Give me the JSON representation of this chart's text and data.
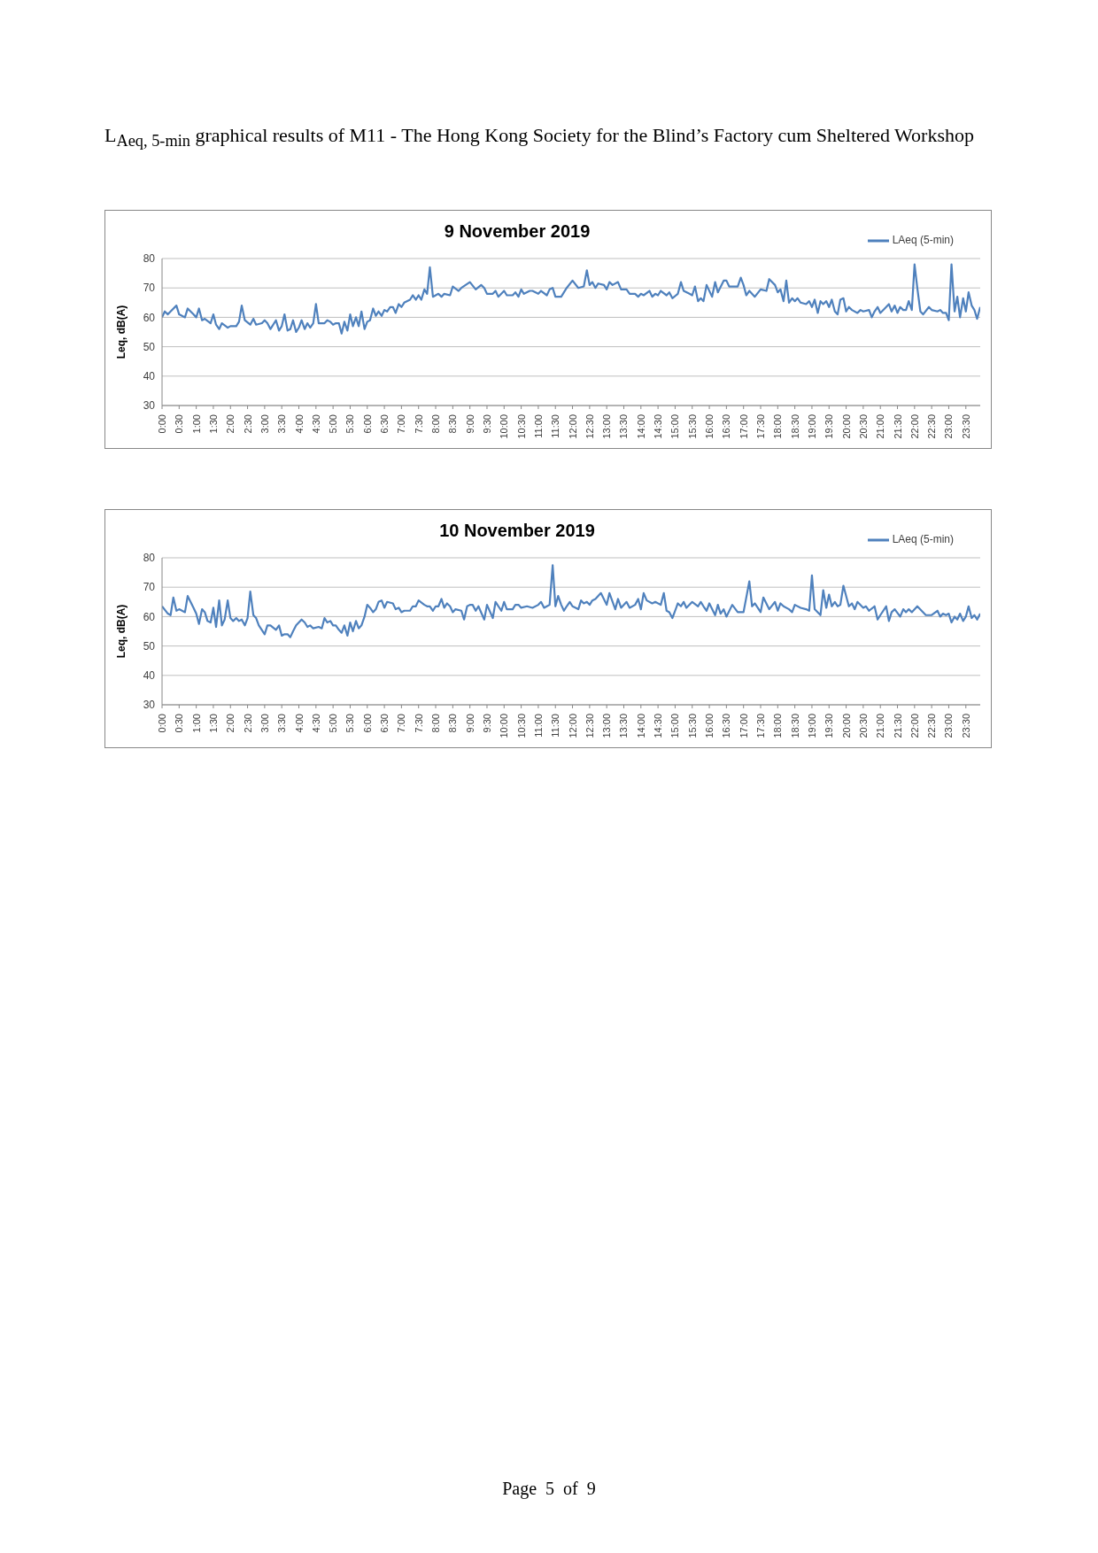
{
  "chart_data": [
    {
      "type": "line",
      "title": "9 November 2019",
      "ylabel": "Leq, dB(A)",
      "annotations": [
        "L$_{Aeq, 5-min}$ graphical results of M11 - The Hong Kong Society for the Blind’s Factory cum Sheltered Workshop"
      ],
      "x": [
        0,
        0.08,
        0.17,
        0.25,
        0.42,
        0.5,
        0.67,
        0.75,
        0.92,
        1.0,
        1.08,
        1.17,
        1.25,
        1.42,
        1.5,
        1.58,
        1.67,
        1.75,
        1.92,
        2.0,
        2.17,
        2.25,
        2.33,
        2.42,
        2.58,
        2.67,
        2.75,
        2.92,
        3.0,
        3.08,
        3.17,
        3.33,
        3.42,
        3.5,
        3.58,
        3.67,
        3.75,
        3.83,
        3.92,
        4.0,
        4.08,
        4.17,
        4.25,
        4.33,
        4.42,
        4.5,
        4.58,
        4.75,
        4.83,
        4.92,
        5.0,
        5.08,
        5.17,
        5.25,
        5.33,
        5.42,
        5.5,
        5.58,
        5.67,
        5.75,
        5.83,
        5.92,
        6.0,
        6.08,
        6.17,
        6.25,
        6.33,
        6.42,
        6.5,
        6.58,
        6.67,
        6.75,
        6.83,
        6.92,
        7.0,
        7.08,
        7.25,
        7.33,
        7.42,
        7.5,
        7.58,
        7.67,
        7.75,
        7.83,
        7.92,
        8.08,
        8.17,
        8.25,
        8.42,
        8.5,
        8.67,
        8.75,
        9.0,
        9.17,
        9.33,
        9.42,
        9.5,
        9.67,
        9.75,
        9.83,
        10.0,
        10.08,
        10.25,
        10.33,
        10.42,
        10.5,
        10.58,
        10.75,
        10.83,
        11.0,
        11.08,
        11.25,
        11.33,
        11.42,
        11.5,
        11.67,
        11.83,
        12.0,
        12.17,
        12.33,
        12.42,
        12.5,
        12.58,
        12.67,
        12.75,
        12.92,
        13.0,
        13.08,
        13.17,
        13.33,
        13.42,
        13.58,
        13.67,
        13.83,
        13.92,
        14.0,
        14.08,
        14.25,
        14.33,
        14.42,
        14.5,
        14.58,
        14.75,
        14.83,
        14.92,
        15.08,
        15.17,
        15.25,
        15.42,
        15.5,
        15.58,
        15.67,
        15.75,
        15.83,
        15.92,
        16.08,
        16.17,
        16.25,
        16.42,
        16.5,
        16.58,
        16.83,
        16.92,
        17.0,
        17.08,
        17.17,
        17.33,
        17.5,
        17.67,
        17.75,
        17.92,
        18.0,
        18.08,
        18.17,
        18.25,
        18.33,
        18.42,
        18.5,
        18.58,
        18.67,
        18.83,
        18.92,
        19.0,
        19.08,
        19.17,
        19.25,
        19.33,
        19.42,
        19.5,
        19.58,
        19.67,
        19.75,
        19.83,
        19.92,
        20.0,
        20.08,
        20.17,
        20.33,
        20.42,
        20.5,
        20.67,
        20.75,
        20.83,
        20.92,
        21.0,
        21.17,
        21.25,
        21.33,
        21.42,
        21.5,
        21.58,
        21.67,
        21.75,
        21.83,
        21.92,
        22.0,
        22.08,
        22.17,
        22.25,
        22.42,
        22.5,
        22.67,
        22.75,
        22.83,
        22.92,
        23.0,
        23.08,
        23.17,
        23.25,
        23.33,
        23.42,
        23.5,
        23.58,
        23.67,
        23.75,
        23.83,
        23.92
      ],
      "series": [
        {
          "name": "LAeq (5-min)",
          "color": "#4f81bd",
          "values": [
            60,
            62,
            61,
            62,
            64,
            61,
            60,
            63,
            61,
            60,
            63,
            59,
            59.5,
            58,
            61,
            57.5,
            56,
            58,
            56.5,
            57,
            57,
            58.5,
            64,
            59,
            57.5,
            59.5,
            57.5,
            58,
            59,
            58,
            56,
            59,
            55.5,
            57,
            61,
            55.5,
            56,
            59,
            55,
            56.5,
            59,
            56,
            58,
            56.5,
            58,
            64.5,
            58,
            58,
            59,
            58.5,
            57.5,
            58,
            58,
            54.5,
            58.5,
            55.5,
            61,
            57,
            60,
            57,
            62,
            56,
            58.5,
            59,
            63,
            60.5,
            62,
            60.5,
            62.5,
            62,
            63.5,
            63.5,
            61.5,
            64.5,
            63.5,
            65,
            66,
            67.5,
            66,
            67.5,
            66,
            69.5,
            68,
            77,
            67,
            68,
            67,
            68,
            67.5,
            70.5,
            69,
            70,
            72,
            69.5,
            71,
            70,
            68,
            68,
            69,
            67,
            69,
            67.5,
            67.5,
            68.5,
            67,
            69.5,
            68,
            69,
            69,
            68,
            69,
            67.5,
            69.5,
            70,
            67,
            67,
            70,
            72.5,
            70,
            70.5,
            76,
            71,
            72,
            70,
            71.5,
            71,
            69.5,
            72,
            71,
            72,
            69.5,
            69.5,
            68,
            68,
            67,
            68,
            67.5,
            69,
            67,
            68,
            67.5,
            69,
            67.5,
            68.5,
            66.5,
            68,
            72,
            69,
            68,
            67.5,
            70.5,
            65.5,
            66.5,
            65.5,
            71,
            67,
            72,
            68.5,
            72.5,
            72.5,
            70.5,
            70.5,
            73.5,
            71,
            67.5,
            69,
            67,
            69.5,
            69,
            73,
            71,
            68.5,
            69.5,
            65.5,
            72.5,
            65,
            66.5,
            65.5,
            66.5,
            65,
            64.5,
            65.5,
            63.5,
            66,
            61.5,
            65.5,
            64.5,
            65.5,
            63.5,
            66,
            62,
            61,
            66,
            66.5,
            62,
            63.5,
            62.5,
            61.5,
            62.5,
            62,
            62.5,
            60,
            62,
            63.5,
            61.5,
            63.5,
            64.5,
            62,
            64,
            61.5,
            63.5,
            62.5,
            62.5,
            65.5,
            62.5,
            78,
            70,
            62,
            61,
            63.5,
            62.5,
            62,
            62.5,
            61.5,
            61.5,
            59,
            78,
            62,
            67,
            60,
            66.5,
            62,
            68.5,
            64,
            62.5,
            59.5,
            63.5
          ]
        }
      ],
      "xlim": [
        0,
        23.92
      ],
      "ylim": [
        30,
        80
      ],
      "yticks": [
        30,
        40,
        50,
        60,
        70,
        80
      ],
      "xticks": [
        {
          "value": 0,
          "label": "0:00"
        },
        {
          "value": 0.5,
          "label": "0:30"
        },
        {
          "value": 1,
          "label": "1:00"
        },
        {
          "value": 1.5,
          "label": "1:30"
        },
        {
          "value": 2,
          "label": "2:00"
        },
        {
          "value": 2.5,
          "label": "2:30"
        },
        {
          "value": 3,
          "label": "3:00"
        },
        {
          "value": 3.5,
          "label": "3:30"
        },
        {
          "value": 4,
          "label": "4:00"
        },
        {
          "value": 4.5,
          "label": "4:30"
        },
        {
          "value": 5,
          "label": "5:00"
        },
        {
          "value": 5.5,
          "label": "5:30"
        },
        {
          "value": 6,
          "label": "6:00"
        },
        {
          "value": 6.5,
          "label": "6:30"
        },
        {
          "value": 7,
          "label": "7:00"
        },
        {
          "value": 7.5,
          "label": "7:30"
        },
        {
          "value": 8,
          "label": "8:00"
        },
        {
          "value": 8.5,
          "label": "8:30"
        },
        {
          "value": 9,
          "label": "9:00"
        },
        {
          "value": 9.5,
          "label": "9:30"
        },
        {
          "value": 10,
          "label": "10:00"
        },
        {
          "value": 10.5,
          "label": "10:30"
        },
        {
          "value": 11,
          "label": "11:00"
        },
        {
          "value": 11.5,
          "label": "11:30"
        },
        {
          "value": 12,
          "label": "12:00"
        },
        {
          "value": 12.5,
          "label": "12:30"
        },
        {
          "value": 13,
          "label": "13:00"
        },
        {
          "value": 13.5,
          "label": "13:30"
        },
        {
          "value": 14,
          "label": "14:00"
        },
        {
          "value": 14.5,
          "label": "14:30"
        },
        {
          "value": 15,
          "label": "15:00"
        },
        {
          "value": 15.5,
          "label": "15:30"
        },
        {
          "value": 16,
          "label": "16:00"
        },
        {
          "value": 16.5,
          "label": "16:30"
        },
        {
          "value": 17,
          "label": "17:00"
        },
        {
          "value": 17.5,
          "label": "17:30"
        },
        {
          "value": 18,
          "label": "18:00"
        },
        {
          "value": 18.5,
          "label": "18:30"
        },
        {
          "value": 19,
          "label": "19:00"
        },
        {
          "value": 19.5,
          "label": "19:30"
        },
        {
          "value": 20,
          "label": "20:00"
        },
        {
          "value": 20.5,
          "label": "20:30"
        },
        {
          "value": 21,
          "label": "21:00"
        },
        {
          "value": 21.5,
          "label": "21:30"
        },
        {
          "value": 22,
          "label": "22:00"
        },
        {
          "value": 22.5,
          "label": "22:30"
        },
        {
          "value": 23,
          "label": "23:00"
        },
        {
          "value": 23.5,
          "label": "23:30"
        }
      ],
      "grid": "y",
      "legend": "top right",
      "marker": "none",
      "line_style": "solid"
    },
    {
      "type": "line",
      "title": "10 November 2019",
      "ylabel": "Leq, dB(A)",
      "annotations": [
        "Page  5  of  9"
      ],
      "x": [
        0,
        0.17,
        0.25,
        0.33,
        0.42,
        0.5,
        0.67,
        0.75,
        0.92,
        1.0,
        1.08,
        1.17,
        1.25,
        1.33,
        1.42,
        1.5,
        1.58,
        1.67,
        1.75,
        1.83,
        1.92,
        2.0,
        2.08,
        2.17,
        2.25,
        2.33,
        2.42,
        2.5,
        2.58,
        2.67,
        2.75,
        2.83,
        3.0,
        3.08,
        3.17,
        3.33,
        3.42,
        3.5,
        3.58,
        3.67,
        3.75,
        3.83,
        3.92,
        4.08,
        4.17,
        4.25,
        4.33,
        4.42,
        4.58,
        4.67,
        4.75,
        4.83,
        4.92,
        5.0,
        5.08,
        5.17,
        5.25,
        5.33,
        5.42,
        5.5,
        5.58,
        5.67,
        5.75,
        5.83,
        5.92,
        6.0,
        6.08,
        6.17,
        6.25,
        6.33,
        6.42,
        6.5,
        6.58,
        6.75,
        6.83,
        6.92,
        7.0,
        7.08,
        7.25,
        7.33,
        7.42,
        7.5,
        7.67,
        7.75,
        7.83,
        7.92,
        8.0,
        8.08,
        8.17,
        8.25,
        8.33,
        8.42,
        8.5,
        8.58,
        8.75,
        8.83,
        8.92,
        9.0,
        9.08,
        9.17,
        9.25,
        9.42,
        9.5,
        9.67,
        9.75,
        9.92,
        10.0,
        10.08,
        10.17,
        10.25,
        10.33,
        10.42,
        10.5,
        10.67,
        10.83,
        11.0,
        11.08,
        11.17,
        11.25,
        11.33,
        11.42,
        11.5,
        11.58,
        11.67,
        11.75,
        11.83,
        11.92,
        12.0,
        12.17,
        12.25,
        12.33,
        12.42,
        12.5,
        12.58,
        12.67,
        12.83,
        13.0,
        13.08,
        13.25,
        13.33,
        13.42,
        13.58,
        13.67,
        13.83,
        13.92,
        14.0,
        14.08,
        14.17,
        14.33,
        14.42,
        14.58,
        14.67,
        14.75,
        14.83,
        14.92,
        15.08,
        15.17,
        15.25,
        15.33,
        15.5,
        15.67,
        15.75,
        15.83,
        15.92,
        16.0,
        16.17,
        16.25,
        16.33,
        16.42,
        16.5,
        16.67,
        16.83,
        17.0,
        17.17,
        17.25,
        17.33,
        17.5,
        17.58,
        17.75,
        17.92,
        18.0,
        18.08,
        18.17,
        18.33,
        18.42,
        18.5,
        18.67,
        18.83,
        18.92,
        19.0,
        19.08,
        19.25,
        19.33,
        19.42,
        19.5,
        19.58,
        19.67,
        19.75,
        19.83,
        19.92,
        20.08,
        20.17,
        20.25,
        20.33,
        20.5,
        20.58,
        20.67,
        20.83,
        20.92,
        21.0,
        21.17,
        21.25,
        21.33,
        21.42,
        21.58,
        21.67,
        21.75,
        21.83,
        21.92,
        22.08,
        22.33,
        22.5,
        22.67,
        22.75,
        22.83,
        22.92,
        23.0,
        23.08,
        23.17,
        23.25,
        23.33,
        23.42,
        23.5,
        23.58,
        23.67,
        23.75,
        23.83,
        23.92
      ],
      "series": [
        {
          "name": "LAeq (5-min)",
          "color": "#4f81bd",
          "values": [
            63.5,
            61,
            60.5,
            66.5,
            62,
            62.5,
            61.5,
            67,
            63,
            61,
            57.5,
            62.5,
            61.5,
            58.5,
            58,
            63,
            56.5,
            65.5,
            57,
            59,
            65.5,
            59.5,
            58.5,
            59.5,
            58.5,
            59,
            57,
            59.5,
            68.5,
            60.5,
            59.5,
            57,
            54,
            57,
            57,
            55.5,
            57,
            53.5,
            54,
            54,
            53,
            55,
            57,
            59,
            58,
            56.5,
            57,
            56,
            56.5,
            56,
            59.5,
            58,
            58.5,
            57,
            57,
            55.5,
            54.5,
            57,
            53.5,
            58,
            55,
            58.5,
            56,
            57,
            60,
            64,
            63,
            61.5,
            62.5,
            65,
            65.5,
            63,
            65,
            64.5,
            62.5,
            63,
            61.5,
            62,
            62,
            63.5,
            63.5,
            65.5,
            64,
            63.5,
            63.5,
            62,
            63.5,
            63.5,
            66,
            63,
            64.5,
            63.5,
            61.5,
            62.5,
            62,
            59,
            63.5,
            64,
            64,
            62,
            63.5,
            59,
            64,
            59.5,
            65,
            62,
            65,
            62.5,
            62.5,
            62.5,
            64,
            64,
            63,
            63.5,
            63,
            64,
            65,
            63,
            63.5,
            64,
            77.5,
            63.5,
            67,
            64,
            62,
            63.5,
            65,
            63.5,
            62.5,
            65.5,
            64.5,
            65,
            64,
            65.5,
            66,
            68,
            64,
            68,
            62.5,
            66,
            63,
            65,
            63,
            64,
            66,
            62.5,
            68,
            65.5,
            64.5,
            65,
            64,
            68,
            62,
            61.5,
            59.5,
            64.5,
            63.5,
            65,
            63,
            65,
            63.5,
            65,
            63.5,
            62,
            64.5,
            60.5,
            64,
            61,
            62.5,
            60,
            64,
            61.5,
            61.5,
            72,
            63.5,
            64.5,
            61.5,
            66.5,
            62.5,
            65,
            62,
            64.5,
            63.5,
            62.5,
            61.5,
            64,
            63,
            62.5,
            62,
            74,
            62.5,
            60.5,
            69,
            63,
            67.5,
            63.5,
            65,
            63.5,
            64,
            70.5,
            63.5,
            64.5,
            62.5,
            65,
            63,
            63.5,
            62,
            63.5,
            59,
            60.5,
            63.5,
            58.5,
            61.5,
            62.5,
            60,
            62.5,
            61.5,
            62.5,
            61.5,
            63.5,
            60.5,
            60.5,
            62,
            60,
            61,
            60.5,
            61,
            58,
            60,
            59,
            61,
            58.5,
            60,
            63.5,
            59.5,
            60.5,
            59,
            61
          ]
        }
      ],
      "xlim": [
        0,
        23.92
      ],
      "ylim": [
        30,
        80
      ],
      "yticks": [
        30,
        40,
        50,
        60,
        70,
        80
      ],
      "xticks": [
        {
          "value": 0,
          "label": "0:00"
        },
        {
          "value": 0.5,
          "label": "0:30"
        },
        {
          "value": 1,
          "label": "1:00"
        },
        {
          "value": 1.5,
          "label": "1:30"
        },
        {
          "value": 2,
          "label": "2:00"
        },
        {
          "value": 2.5,
          "label": "2:30"
        },
        {
          "value": 3,
          "label": "3:00"
        },
        {
          "value": 3.5,
          "label": "3:30"
        },
        {
          "value": 4,
          "label": "4:00"
        },
        {
          "value": 4.5,
          "label": "4:30"
        },
        {
          "value": 5,
          "label": "5:00"
        },
        {
          "value": 5.5,
          "label": "5:30"
        },
        {
          "value": 6,
          "label": "6:00"
        },
        {
          "value": 6.5,
          "label": "6:30"
        },
        {
          "value": 7,
          "label": "7:00"
        },
        {
          "value": 7.5,
          "label": "7:30"
        },
        {
          "value": 8,
          "label": "8:00"
        },
        {
          "value": 8.5,
          "label": "8:30"
        },
        {
          "value": 9,
          "label": "9:00"
        },
        {
          "value": 9.5,
          "label": "9:30"
        },
        {
          "value": 10,
          "label": "10:00"
        },
        {
          "value": 10.5,
          "label": "10:30"
        },
        {
          "value": 11,
          "label": "11:00"
        },
        {
          "value": 11.5,
          "label": "11:30"
        },
        {
          "value": 12,
          "label": "12:00"
        },
        {
          "value": 12.5,
          "label": "12:30"
        },
        {
          "value": 13,
          "label": "13:00"
        },
        {
          "value": 13.5,
          "label": "13:30"
        },
        {
          "value": 14,
          "label": "14:00"
        },
        {
          "value": 14.5,
          "label": "14:30"
        },
        {
          "value": 15,
          "label": "15:00"
        },
        {
          "value": 15.5,
          "label": "15:30"
        },
        {
          "value": 16,
          "label": "16:00"
        },
        {
          "value": 16.5,
          "label": "16:30"
        },
        {
          "value": 17,
          "label": "17:00"
        },
        {
          "value": 17.5,
          "label": "17:30"
        },
        {
          "value": 18,
          "label": "18:00"
        },
        {
          "value": 18.5,
          "label": "18:30"
        },
        {
          "value": 19,
          "label": "19:00"
        },
        {
          "value": 19.5,
          "label": "19:30"
        },
        {
          "value": 20,
          "label": "20:00"
        },
        {
          "value": 20.5,
          "label": "20:30"
        },
        {
          "value": 21,
          "label": "21:00"
        },
        {
          "value": 21.5,
          "label": "21:30"
        },
        {
          "value": 22,
          "label": "22:00"
        },
        {
          "value": 22.5,
          "label": "22:30"
        },
        {
          "value": 23,
          "label": "23:00"
        },
        {
          "value": 23.5,
          "label": "23:30"
        }
      ],
      "grid": "y",
      "legend": "top right",
      "marker": "none",
      "line_style": "solid"
    }
  ]
}
